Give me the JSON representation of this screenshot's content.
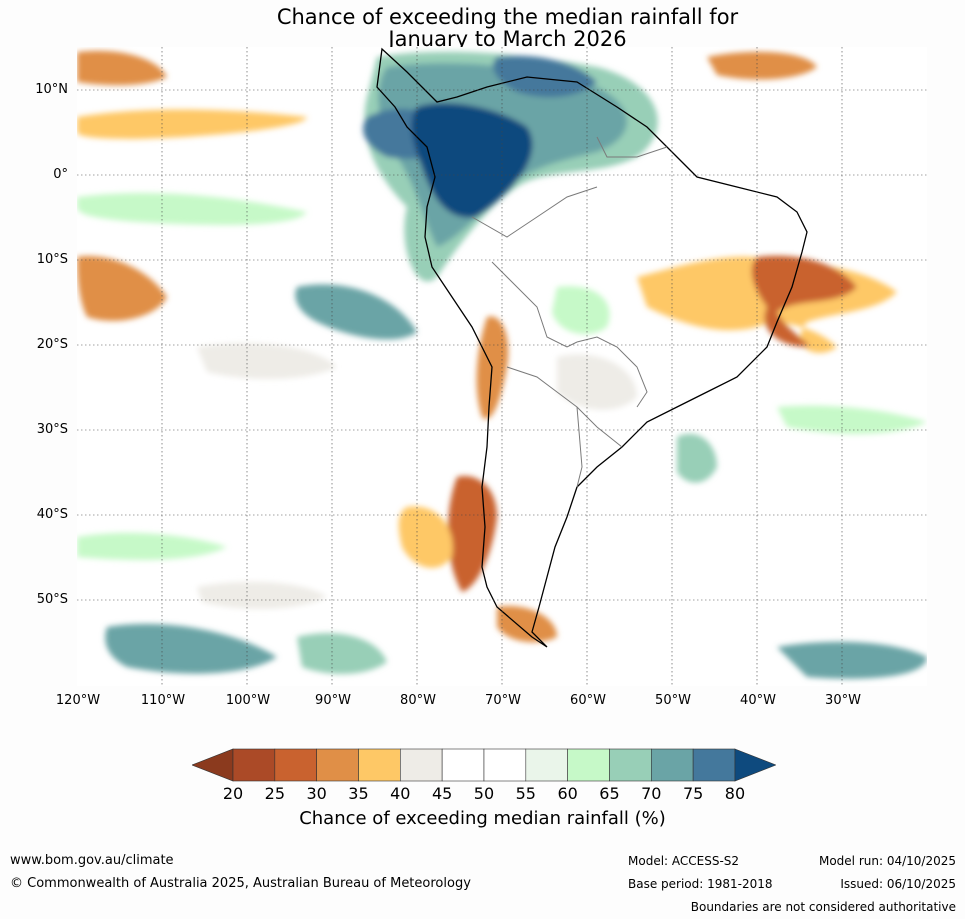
{
  "title": {
    "line1": "Chance of exceeding the median rainfall for",
    "line2": "January to March 2026"
  },
  "map": {
    "region": "South America",
    "lat_labels": [
      "10°N",
      "0°",
      "10°S",
      "20°S",
      "30°S",
      "40°S",
      "50°S"
    ],
    "lon_labels": [
      "120°W",
      "110°W",
      "100°W",
      "90°W",
      "80°W",
      "70°W",
      "60°W",
      "50°W",
      "40°W",
      "30°W"
    ]
  },
  "colorbar": {
    "ticks": [
      "20",
      "25",
      "30",
      "35",
      "40",
      "45",
      "50",
      "55",
      "60",
      "65",
      "70",
      "75",
      "80"
    ],
    "colors": [
      "#8b3a1e",
      "#ab4a27",
      "#c9622f",
      "#e08f47",
      "#fec866",
      "#eeece7",
      "#ffffff",
      "#ffffff",
      "#eaf5ea",
      "#c6f9c8",
      "#98cfb7",
      "#6aa4a6",
      "#44789c",
      "#0e4a7e"
    ],
    "label": "Chance of exceeding median rainfall (%)"
  },
  "footer": {
    "url": "www.bom.gov.au/climate",
    "copyright": "© Commonwealth of Australia 2025, Australian Bureau of Meteorology",
    "model": "Model: ACCESS-S2",
    "base_period": "Base period: 1981-2018",
    "model_run": "Model run: 04/10/2025",
    "issued": "Issued: 06/10/2025",
    "disclaimer": "Boundaries are not considered authoritative"
  }
}
